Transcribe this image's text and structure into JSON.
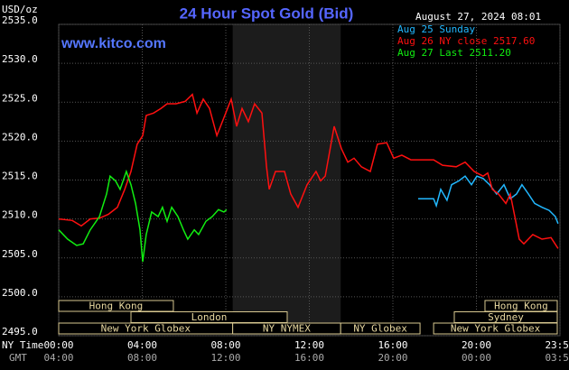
{
  "chart_data": {
    "type": "line",
    "title": "24 Hour Spot Gold (Bid)",
    "y_label": "USD/oz",
    "timestamp": "August 27, 2024 08:01",
    "site": "www.kitco.com",
    "x_row_label": "NY Time",
    "x2_row_label": "GMT",
    "xlim": [
      0,
      24
    ],
    "xticks": [
      {
        "value": 0,
        "label": "00:00"
      },
      {
        "value": 4,
        "label": "04:00"
      },
      {
        "value": 8,
        "label": "08:00"
      },
      {
        "value": 12,
        "label": "12:00"
      },
      {
        "value": 16,
        "label": "16:00"
      },
      {
        "value": 20,
        "label": "20:00"
      },
      {
        "value": 24,
        "label": "23:59"
      }
    ],
    "x2ticks": [
      "04:00",
      "08:00",
      "12:00",
      "16:00",
      "20:00",
      "00:00",
      "03:59"
    ],
    "ylim": [
      2495,
      2535
    ],
    "yticks": [
      {
        "value": 2495,
        "label": "2495.0"
      },
      {
        "value": 2500,
        "label": "2500.0"
      },
      {
        "value": 2505,
        "label": "2505.0"
      },
      {
        "value": 2510,
        "label": "2510.0"
      },
      {
        "value": 2515,
        "label": "2515.0"
      },
      {
        "value": 2520,
        "label": "2520.0"
      },
      {
        "value": 2525,
        "label": "2525.0"
      },
      {
        "value": 2530,
        "label": "2530.0"
      },
      {
        "value": 2535,
        "label": "2535.0"
      }
    ],
    "grid": true,
    "shaded_session": "NY NYMEX",
    "series": [
      {
        "name": "Aug 25 Sunday",
        "color": "#22b8ff",
        "x": [
          17.21,
          17.95,
          18.08,
          18.29,
          18.59,
          18.81,
          19.16,
          19.46,
          19.76,
          20.02,
          20.32,
          20.63,
          20.97,
          21.32,
          21.62,
          21.92,
          22.18,
          22.49,
          22.79,
          23.14,
          23.48,
          23.78,
          23.91
        ],
        "values": [
          2512.6,
          2512.6,
          2511.7,
          2513.8,
          2512.4,
          2514.4,
          2514.9,
          2515.5,
          2514.4,
          2515.5,
          2515.2,
          2514.4,
          2513.2,
          2514.4,
          2512.6,
          2513.2,
          2514.4,
          2513.2,
          2512.0,
          2511.5,
          2511.1,
          2510.3,
          2509.4
        ]
      },
      {
        "name": "Aug 26 NY close 2517.60",
        "color": "#ff1010",
        "x": [
          0,
          0.65,
          1.08,
          1.51,
          1.95,
          2.38,
          2.81,
          3.16,
          3.46,
          3.76,
          4.02,
          4.19,
          4.54,
          4.89,
          5.19,
          5.62,
          6.05,
          6.4,
          6.62,
          6.92,
          7.22,
          7.57,
          7.91,
          8.26,
          8.52,
          8.78,
          9.08,
          9.38,
          9.73,
          9.95,
          10.08,
          10.38,
          10.81,
          11.11,
          11.46,
          11.89,
          12.32,
          12.54,
          12.76,
          13.19,
          13.54,
          13.84,
          14.14,
          14.49,
          14.92,
          15.26,
          15.7,
          16.04,
          16.43,
          16.86,
          17.95,
          18.38,
          19.03,
          19.46,
          19.89,
          20.32,
          20.54,
          20.76,
          21.06,
          21.41,
          21.62,
          21.84,
          22.05,
          22.27,
          22.7,
          23.14,
          23.57,
          23.91
        ],
        "values": [
          2510.0,
          2509.8,
          2509.1,
          2510.0,
          2510.1,
          2510.6,
          2511.5,
          2513.8,
          2516.1,
          2519.6,
          2520.7,
          2523.3,
          2523.6,
          2524.2,
          2524.8,
          2524.8,
          2525.1,
          2526.0,
          2523.6,
          2525.4,
          2524.2,
          2520.7,
          2523.0,
          2525.4,
          2521.9,
          2524.2,
          2522.5,
          2524.8,
          2523.6,
          2516.7,
          2513.8,
          2516.1,
          2516.1,
          2513.2,
          2511.5,
          2514.4,
          2516.1,
          2514.9,
          2515.5,
          2521.9,
          2519.0,
          2517.3,
          2517.8,
          2516.7,
          2516.1,
          2519.6,
          2519.8,
          2517.8,
          2518.2,
          2517.6,
          2517.6,
          2516.9,
          2516.7,
          2517.3,
          2516.1,
          2515.5,
          2515.9,
          2513.8,
          2513.2,
          2512.0,
          2513.2,
          2510.3,
          2507.4,
          2506.8,
          2508.0,
          2507.4,
          2507.6,
          2506.2
        ]
      },
      {
        "name": "Aug 27 Last 2511.20",
        "color": "#11ee11",
        "x": [
          0,
          0.43,
          0.86,
          1.17,
          1.51,
          1.95,
          2.29,
          2.46,
          2.72,
          2.94,
          3.24,
          3.46,
          3.68,
          3.89,
          4.02,
          4.19,
          4.45,
          4.76,
          4.97,
          5.19,
          5.41,
          5.71,
          5.97,
          6.18,
          6.49,
          6.7,
          7.05,
          7.35,
          7.65,
          7.91,
          8.04
        ],
        "values": [
          2508.6,
          2507.4,
          2506.6,
          2506.8,
          2508.6,
          2510.3,
          2513.2,
          2515.5,
          2514.9,
          2513.8,
          2516.1,
          2514.4,
          2512.0,
          2508.6,
          2504.5,
          2508.0,
          2510.9,
          2510.3,
          2511.5,
          2509.7,
          2511.5,
          2510.3,
          2508.6,
          2507.4,
          2508.6,
          2508.0,
          2509.7,
          2510.3,
          2511.2,
          2510.9,
          2511.2
        ]
      }
    ],
    "sessions": [
      [
        {
          "label": "Hong Kong",
          "start": 0,
          "end": 5.49
        },
        {
          "label": "Hong Kong",
          "start": 20.41,
          "end": 23.87
        }
      ],
      [
        {
          "label": "London",
          "start": 3.46,
          "end": 10.94
        },
        {
          "label": "Sydney",
          "start": 18.94,
          "end": 23.87
        }
      ],
      [
        {
          "label": "New York Globex",
          "start": 0,
          "end": 8.33
        },
        {
          "label": "NY NYMEX",
          "start": 8.33,
          "end": 13.5
        },
        {
          "label": "NY Globex",
          "start": 13.5,
          "end": 17.3
        },
        {
          "label": "New York Globex",
          "start": 17.95,
          "end": 23.87
        }
      ]
    ]
  }
}
